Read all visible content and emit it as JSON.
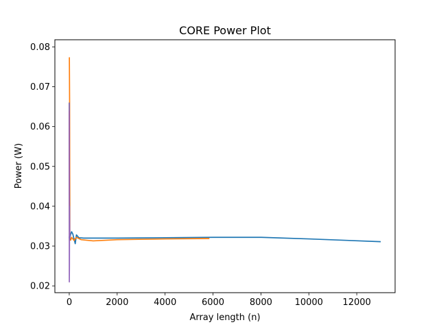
{
  "chart_data": {
    "type": "line",
    "title": "CORE Power Plot",
    "xlabel": "Array length (n)",
    "ylabel": "Power (W)",
    "xlim": [
      -600,
      13600
    ],
    "ylim": [
      0.0183,
      0.0818
    ],
    "xticks": [
      0,
      2000,
      4000,
      6000,
      8000,
      10000,
      12000
    ],
    "yticks": [
      0.02,
      0.03,
      0.04,
      0.05,
      0.06,
      0.07,
      0.08
    ],
    "xtick_labels": [
      "0",
      "2000",
      "4000",
      "6000",
      "8000",
      "10000",
      "12000"
    ],
    "ytick_labels": [
      "0.02",
      "0.03",
      "0.04",
      "0.05",
      "0.06",
      "0.07",
      "0.08"
    ],
    "grid": false,
    "legend": false,
    "series": [
      {
        "color": "#1f77b4",
        "x": [
          0,
          10,
          30,
          60,
          100,
          150,
          200,
          250,
          300,
          400,
          600,
          1000,
          2000,
          4000,
          6000,
          8000,
          10000,
          13000
        ],
        "y": [
          0.0324,
          0.0314,
          0.0322,
          0.033,
          0.0336,
          0.033,
          0.0318,
          0.0306,
          0.0328,
          0.0321,
          0.032,
          0.032,
          0.032,
          0.0321,
          0.0322,
          0.0322,
          0.0318,
          0.0311
        ]
      },
      {
        "color": "#ff7f0e",
        "x": [
          0,
          5,
          15,
          25,
          40,
          60,
          100,
          150,
          200,
          300,
          500,
          1000,
          2000,
          4000,
          5850
        ],
        "y": [
          0.0774,
          0.0773,
          0.066,
          0.0315,
          0.0318,
          0.0315,
          0.0322,
          0.0318,
          0.0314,
          0.0322,
          0.0316,
          0.0313,
          0.0316,
          0.0318,
          0.0319
        ]
      },
      {
        "color": "#2ca02c",
        "x": [
          0,
          5,
          10,
          20,
          30
        ],
        "y": [
          0.066,
          0.05,
          0.032,
          0.0316,
          0.0316
        ]
      },
      {
        "color": "#d62728",
        "x": [
          0,
          5,
          10,
          20,
          30
        ],
        "y": [
          0.064,
          0.048,
          0.0322,
          0.0318,
          0.0317
        ]
      },
      {
        "color": "#9467bd",
        "x": [
          0,
          3,
          8,
          12,
          18,
          25,
          35
        ],
        "y": [
          0.066,
          0.021,
          0.025,
          0.04,
          0.035,
          0.0325,
          0.032
        ]
      }
    ]
  }
}
